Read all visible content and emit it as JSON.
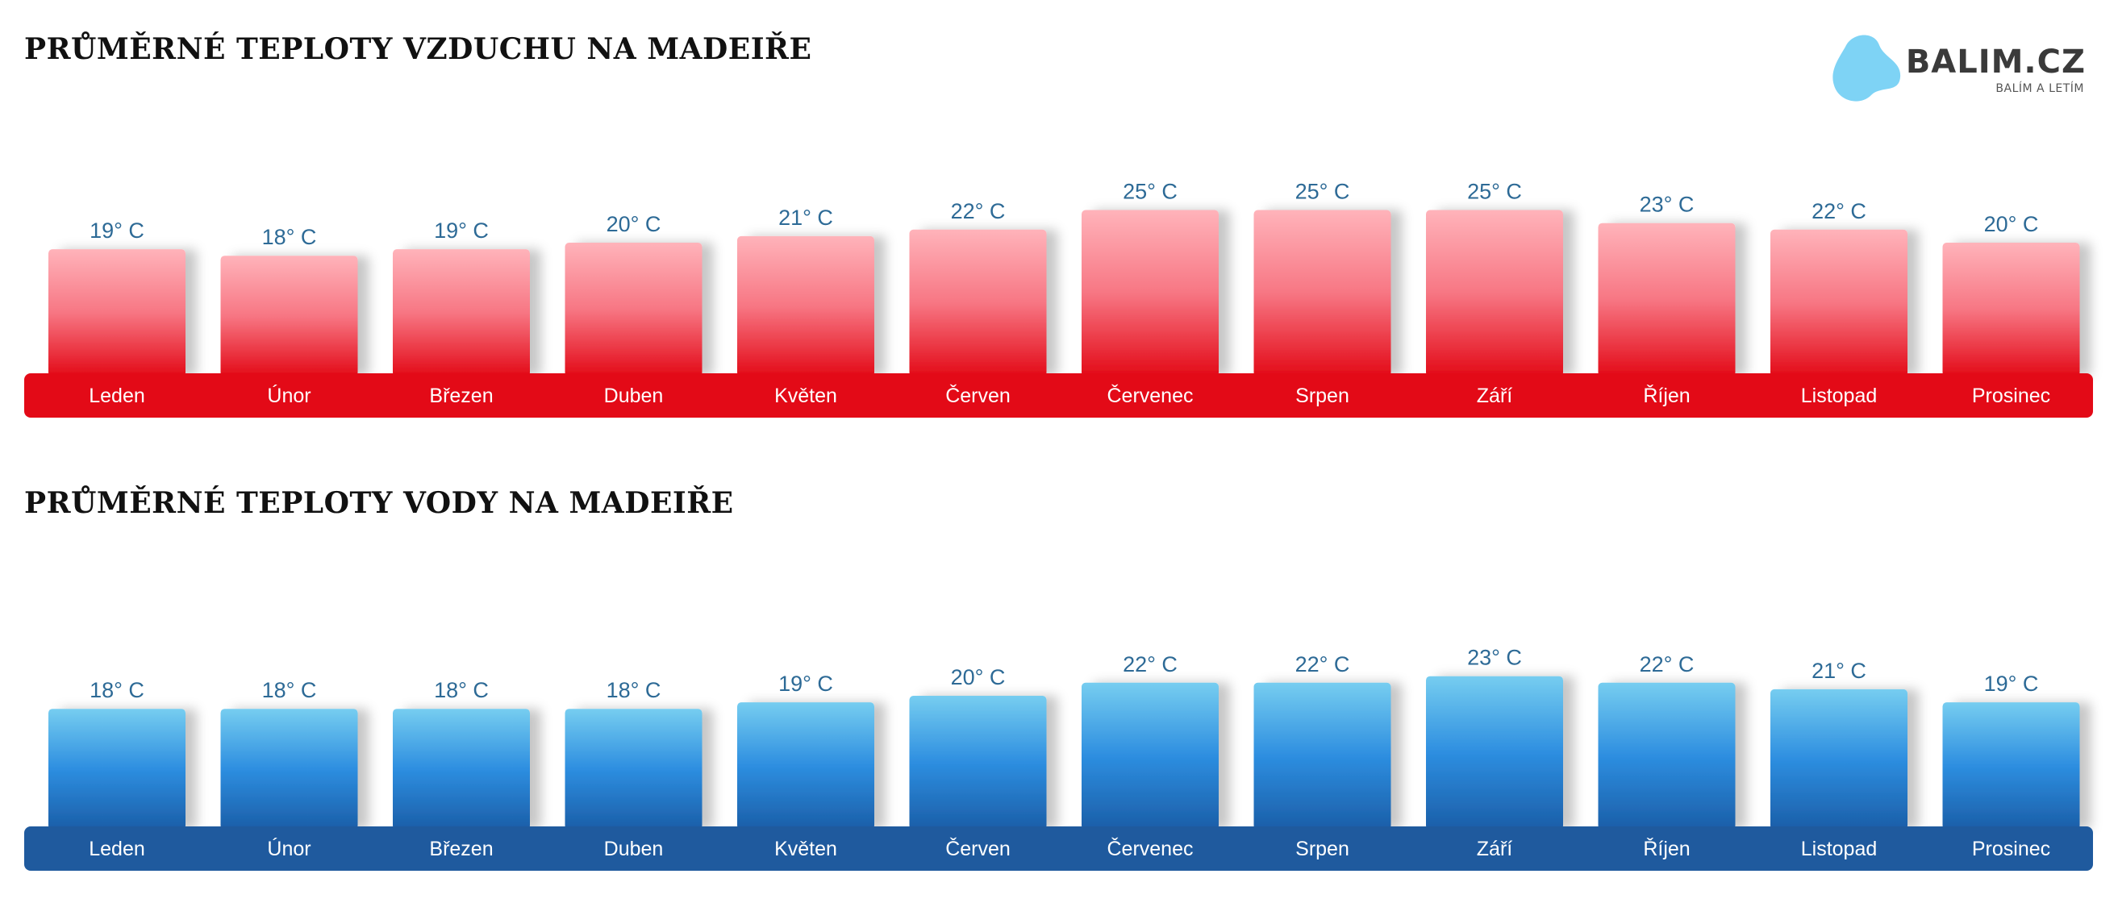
{
  "logo": {
    "name": "BALIM.CZ",
    "tagline": "BALÍM A LETÍM",
    "icon": "cloud-blob-icon",
    "color": "#7ed3f5"
  },
  "chart_data": [
    {
      "type": "bar",
      "title": "PRŮMĚRNÉ TEPLOTY VZDUCHU NA MADEIŘE",
      "categories": [
        "Leden",
        "Únor",
        "Březen",
        "Duben",
        "Květen",
        "Červen",
        "Červenec",
        "Srpen",
        "Září",
        "Říjen",
        "Listopad",
        "Prosinec"
      ],
      "values": [
        19,
        18,
        19,
        20,
        21,
        22,
        25,
        25,
        25,
        23,
        22,
        20
      ],
      "value_labels": [
        "19° C",
        "18° C",
        "19° C",
        "20° C",
        "21° C",
        "22° C",
        "25° C",
        "25° C",
        "25° C",
        "23° C",
        "22° C",
        "20° C"
      ],
      "unit": "° C",
      "colors": {
        "bar_top": "#ffb3ba",
        "bar_mid": "#f77683",
        "bar_bottom": "#e30a17",
        "band": "#e30a17",
        "value_text": "#2d6a96",
        "month_text": "#ffffff"
      }
    },
    {
      "type": "bar",
      "title": "PRŮMĚRNÉ TEPLOTY VODY NA MADEIŘE",
      "categories": [
        "Leden",
        "Únor",
        "Březen",
        "Duben",
        "Květen",
        "Červen",
        "Červenec",
        "Srpen",
        "Září",
        "Říjen",
        "Listopad",
        "Prosinec"
      ],
      "values": [
        18,
        18,
        18,
        18,
        19,
        20,
        22,
        22,
        23,
        22,
        21,
        19
      ],
      "value_labels": [
        "18° C",
        "18° C",
        "18° C",
        "18° C",
        "19° C",
        "20° C",
        "22° C",
        "22° C",
        "23° C",
        "22° C",
        "21° C",
        "19° C"
      ],
      "unit": "° C",
      "colors": {
        "bar_top": "#76cdf0",
        "bar_mid": "#2d8ee0",
        "bar_bottom": "#1b5ea8",
        "band": "#1f5a9e",
        "value_text": "#2d6a96",
        "month_text": "#ffffff"
      }
    }
  ]
}
